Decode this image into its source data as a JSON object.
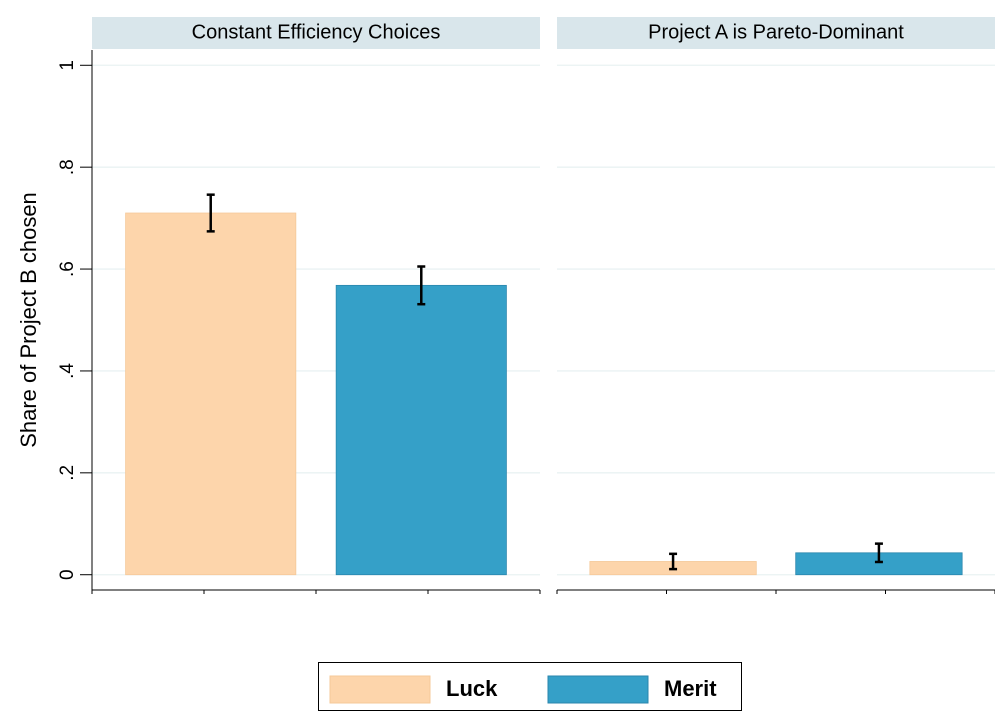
{
  "chart_data": [
    {
      "type": "bar",
      "title": "Constant Efficiency Choices",
      "ylabel": "Share of Project B chosen",
      "series": [
        {
          "name": "Luck",
          "color": "#fdd5ab",
          "values": [
            0.71
          ],
          "errors": [
            0.036
          ]
        },
        {
          "name": "Merit",
          "color": "#35a0c8",
          "values": [
            0.568
          ],
          "errors": [
            0.037
          ]
        }
      ],
      "ylim": [
        -0.03,
        1.03
      ],
      "yticks": [
        0,
        {
          "value": 0.2,
          "label": ".2"
        },
        {
          "value": 0.4,
          "label": ".4"
        },
        {
          "value": 0.6,
          "label": ".6"
        },
        {
          "value": 0.8,
          "label": ".8"
        },
        1
      ],
      "grid": true,
      "legend": "bottom"
    },
    {
      "type": "bar",
      "title": "Project A is Pareto-Dominant",
      "series": [
        {
          "name": "Luck",
          "color": "#fdd5ab",
          "values": [
            0.026
          ],
          "errors": [
            0.015
          ]
        },
        {
          "name": "Merit",
          "color": "#35a0c8",
          "values": [
            0.043
          ],
          "errors": [
            0.018
          ]
        }
      ],
      "ylim": [
        -0.03,
        1.03
      ],
      "yticks": [
        0,
        0.2,
        0.4,
        0.6,
        0.8,
        1
      ],
      "grid": true
    }
  ]
}
